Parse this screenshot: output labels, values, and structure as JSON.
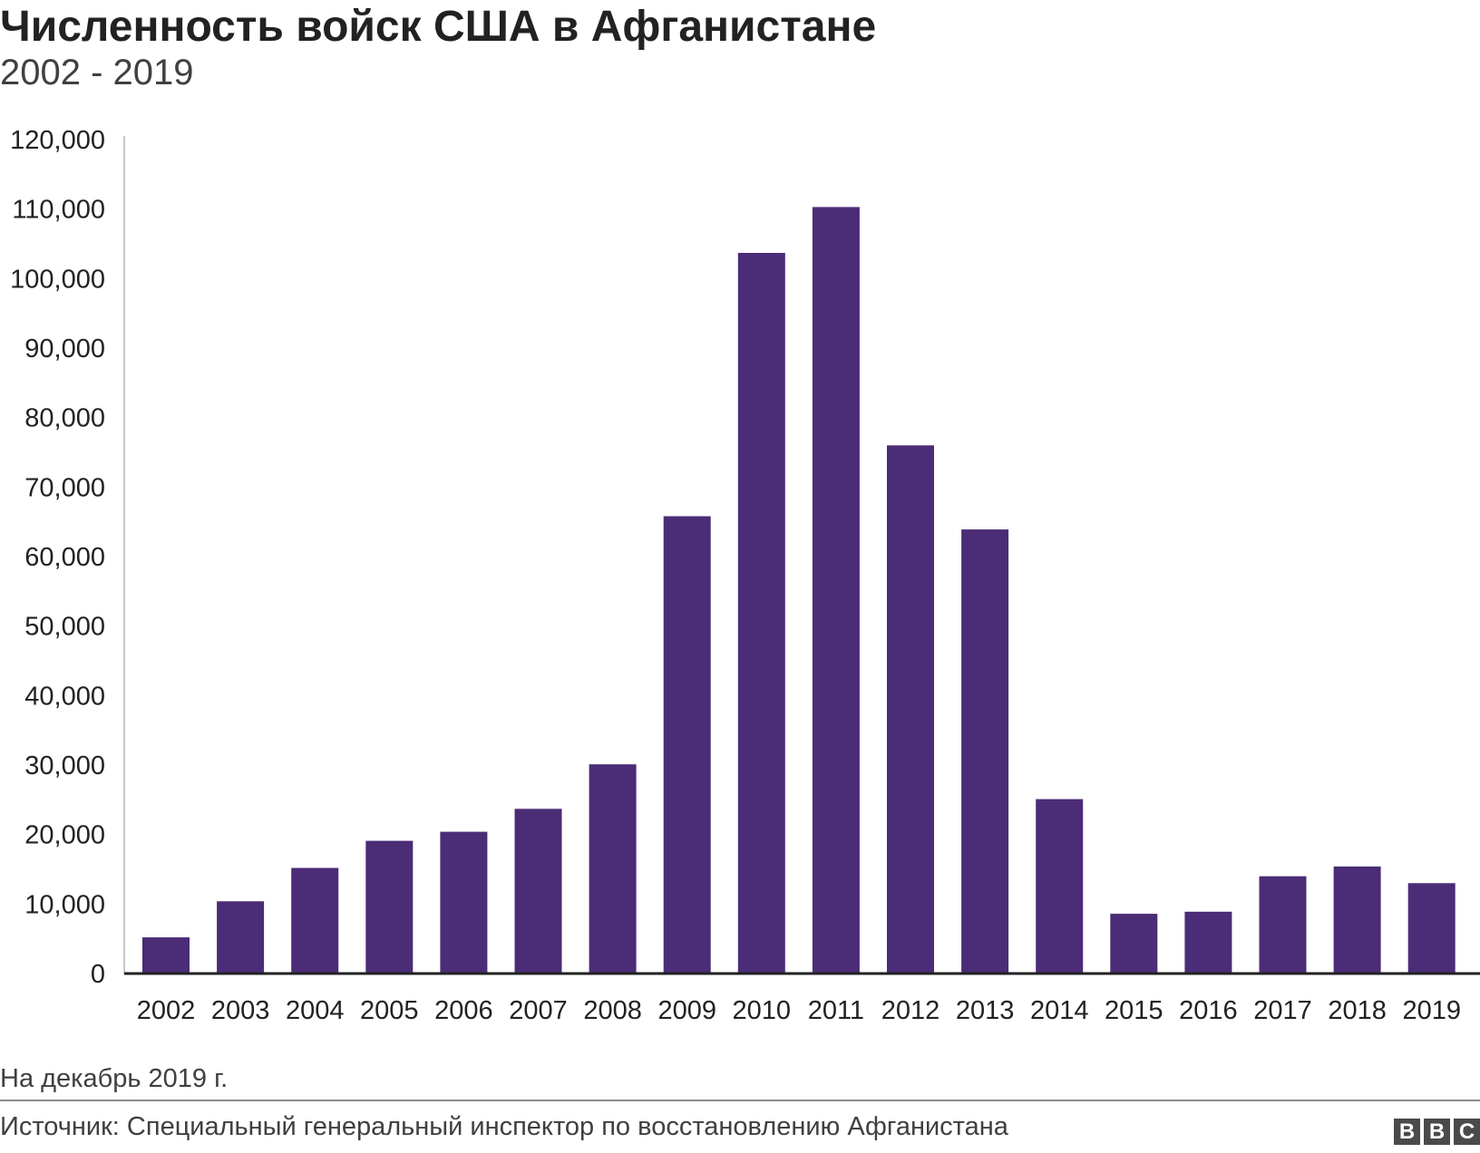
{
  "header": {
    "title": "Численность войск США в Афганистане",
    "subtitle": "2002 - 2019"
  },
  "chart_data": {
    "type": "bar",
    "title": "Численность войск США в Афганистане",
    "subtitle": "2002 - 2019",
    "xlabel": "",
    "ylabel": "",
    "categories": [
      "2002",
      "2003",
      "2004",
      "2005",
      "2006",
      "2007",
      "2008",
      "2009",
      "2010",
      "2011",
      "2012",
      "2013",
      "2014",
      "2015",
      "2016",
      "2017",
      "2018",
      "2019"
    ],
    "values": [
      5200,
      10400,
      15200,
      19100,
      20400,
      23700,
      30100,
      65800,
      103700,
      110300,
      76000,
      63900,
      25100,
      8600,
      8900,
      14000,
      15400,
      13000
    ],
    "ylim": [
      0,
      120000
    ],
    "yticks": [
      0,
      10000,
      20000,
      30000,
      40000,
      50000,
      60000,
      70000,
      80000,
      90000,
      100000,
      110000,
      120000
    ],
    "ytick_labels": [
      "0",
      "10,000",
      "20,000",
      "30,000",
      "40,000",
      "50,000",
      "60,000",
      "70,000",
      "80,000",
      "90,000",
      "100,000",
      "110,000",
      "120,000"
    ],
    "grid": false,
    "bar_color": "#4b2c76"
  },
  "footer": {
    "note": "На декабрь 2019 г.",
    "source": "Источник: Специальный генеральный инспектор по восстановлению Афганистана",
    "logo": [
      "B",
      "B",
      "C"
    ]
  }
}
